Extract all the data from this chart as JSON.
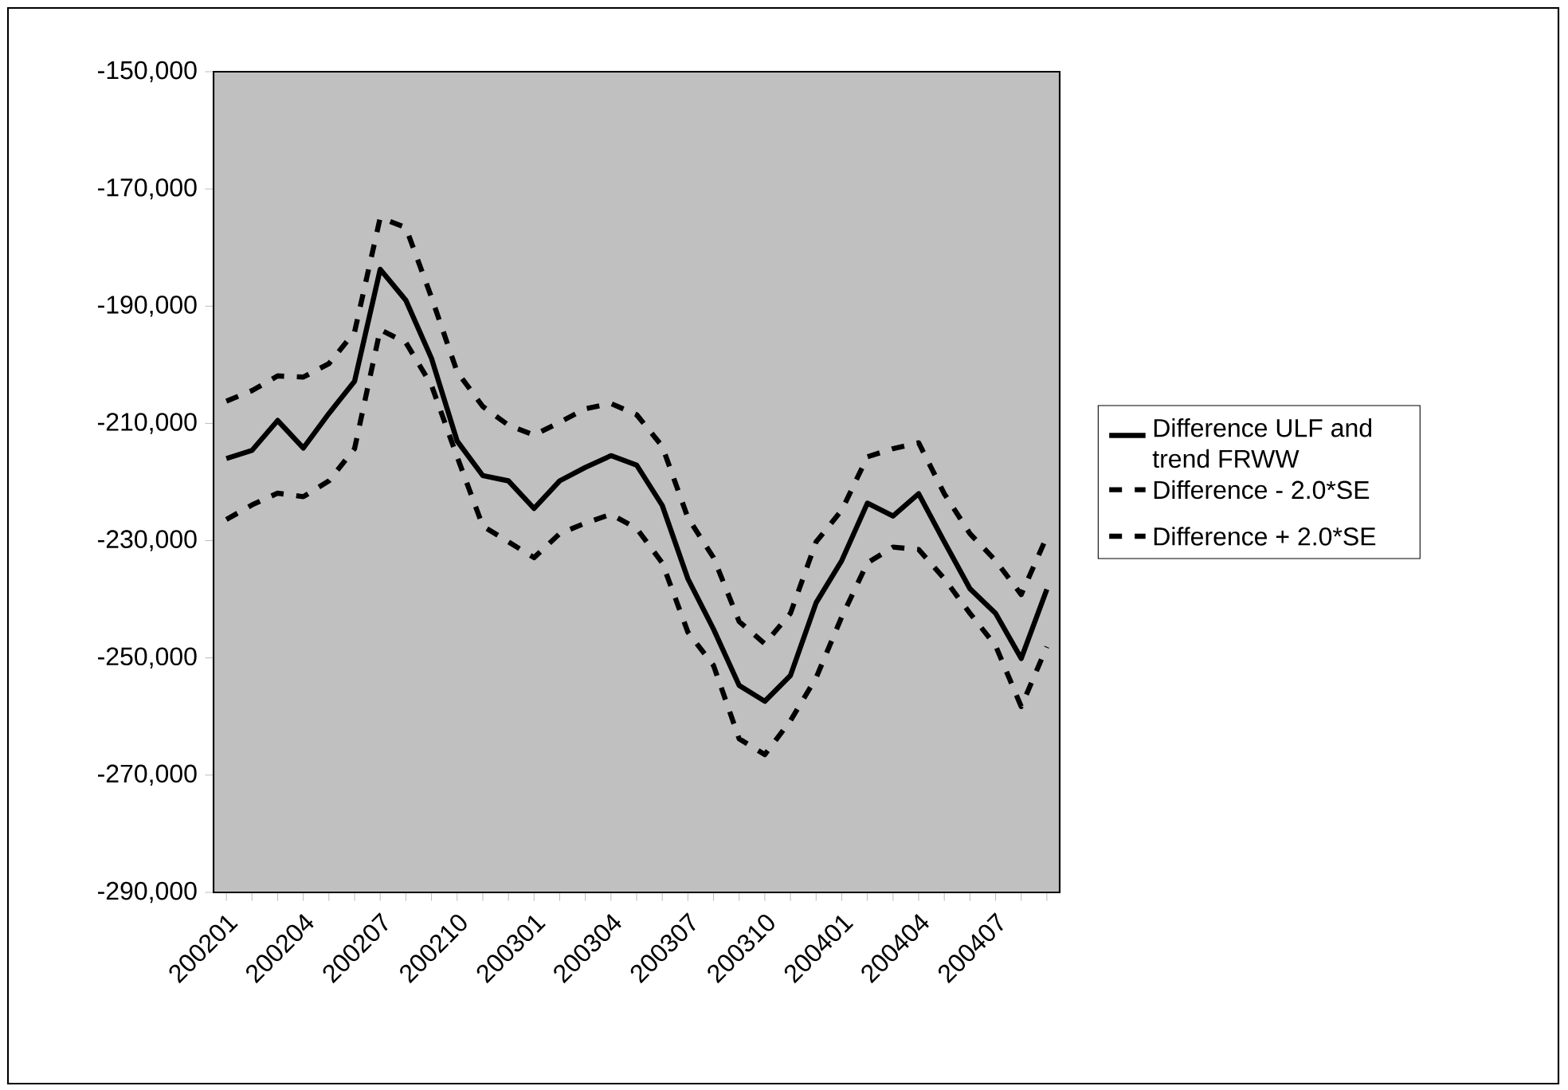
{
  "chart_data": {
    "type": "line",
    "categories": [
      "200201",
      null,
      null,
      "200204",
      null,
      null,
      "200207",
      null,
      null,
      "200210",
      null,
      null,
      "200301",
      null,
      null,
      "200304",
      null,
      null,
      "200307",
      null,
      null,
      "200310",
      null,
      null,
      "200401",
      null,
      null,
      "200404",
      null,
      null,
      "200407",
      null,
      null
    ],
    "series": [
      {
        "name": "Difference ULF and trend FRWW",
        "color": "#000000",
        "line_style": "solid",
        "values": [
          -216000,
          -214600,
          -209500,
          -214200,
          -208300,
          -202800,
          -183700,
          -189000,
          -198900,
          -213000,
          -218900,
          -219800,
          -224500,
          -219800,
          -217500,
          -215500,
          -217100,
          -224000,
          -236500,
          -245100,
          -254700,
          -257400,
          -253000,
          -240600,
          -233400,
          -223600,
          -225800,
          -222000,
          -230200,
          -238200,
          -242400,
          -250100,
          -238300
        ]
      },
      {
        "name": "Difference - 2.0*SE",
        "color": "#000000",
        "line_style": "dashed",
        "values": [
          -226400,
          -223900,
          -221900,
          -222500,
          -219800,
          -214300,
          -194000,
          -196200,
          -203500,
          -215700,
          -227500,
          -230200,
          -232900,
          -228800,
          -227000,
          -225500,
          -227900,
          -233800,
          -245600,
          -251300,
          -263800,
          -266500,
          -260700,
          -253400,
          -243000,
          -233800,
          -231100,
          -231500,
          -236500,
          -242400,
          -247900,
          -258300,
          -248100
        ]
      },
      {
        "name": "Difference + 2.0*SE",
        "color": "#000000",
        "line_style": "dashed",
        "values": [
          -206200,
          -204400,
          -201900,
          -202100,
          -199800,
          -194400,
          -174900,
          -176600,
          -188500,
          -201200,
          -207100,
          -210300,
          -212000,
          -209800,
          -207500,
          -206600,
          -208500,
          -213900,
          -226100,
          -232900,
          -243800,
          -247600,
          -242400,
          -230200,
          -224800,
          -215700,
          -214300,
          -213300,
          -222000,
          -228800,
          -233400,
          -239200,
          -229300
        ]
      }
    ],
    "ylim": [
      -290000,
      -150000
    ],
    "yticks": [
      {
        "value": -290000,
        "label": "-290,000"
      },
      {
        "value": -270000,
        "label": "-270,000"
      },
      {
        "value": -250000,
        "label": "-250,000"
      },
      {
        "value": -230000,
        "label": "-230,000"
      },
      {
        "value": -210000,
        "label": "-210,000"
      },
      {
        "value": -190000,
        "label": "-190,000"
      },
      {
        "value": -170000,
        "label": "-170,000"
      },
      {
        "value": -150000,
        "label": "-150,000"
      }
    ],
    "legend": "right",
    "marker": "none"
  }
}
